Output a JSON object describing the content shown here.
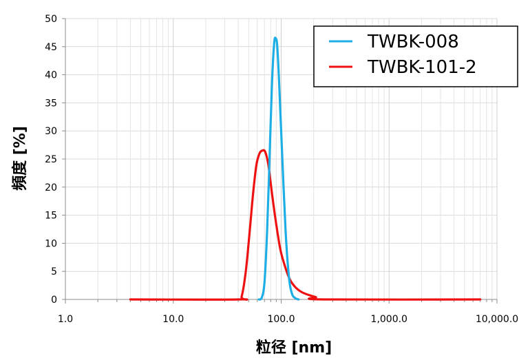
{
  "chart_data": {
    "type": "line",
    "xlabel": "粒径 [nm]",
    "ylabel": "頻度 [%]",
    "x_scale": "log",
    "xlim": [
      1,
      10000
    ],
    "ylim": [
      0,
      50
    ],
    "x_ticks": [
      1,
      10,
      100,
      1000,
      10000
    ],
    "x_tick_labels": [
      "1.0",
      "10.0",
      "100.0",
      "1,000.0",
      "10,000.0"
    ],
    "y_ticks": [
      0,
      5,
      10,
      15,
      20,
      25,
      30,
      35,
      40,
      45,
      50
    ],
    "y_tick_labels": [
      "0",
      "5",
      "10",
      "15",
      "20",
      "25",
      "30",
      "35",
      "40",
      "45",
      "50"
    ],
    "grid": true,
    "legend_position": "top-right",
    "series": [
      {
        "name": "TWBK-008",
        "color": "#1CAEE4",
        "points": [
          [
            62,
            0
          ],
          [
            66,
            0.3
          ],
          [
            70,
            3
          ],
          [
            74,
            12
          ],
          [
            78,
            25
          ],
          [
            82,
            38
          ],
          [
            86,
            45.5
          ],
          [
            89,
            46.5
          ],
          [
            92,
            45
          ],
          [
            96,
            38
          ],
          [
            102,
            26
          ],
          [
            110,
            12
          ],
          [
            118,
            4
          ],
          [
            126,
            1
          ],
          [
            136,
            0.2
          ],
          [
            145,
            0
          ]
        ]
      },
      {
        "name": "TWBK-101-2",
        "color": "#EE1111",
        "points": [
          [
            4,
            0
          ],
          [
            40,
            0
          ],
          [
            43,
            0.5
          ],
          [
            47,
            5
          ],
          [
            51,
            12
          ],
          [
            55,
            19
          ],
          [
            59,
            24
          ],
          [
            63,
            26
          ],
          [
            67,
            26.5
          ],
          [
            71,
            26.3
          ],
          [
            76,
            24
          ],
          [
            82,
            19
          ],
          [
            89,
            14
          ],
          [
            98,
            9
          ],
          [
            108,
            6
          ],
          [
            120,
            3.6
          ],
          [
            135,
            2.2
          ],
          [
            155,
            1.3
          ],
          [
            180,
            0.8
          ],
          [
            210,
            0.4
          ],
          [
            240,
            0
          ],
          [
            7000,
            0
          ]
        ]
      }
    ]
  }
}
